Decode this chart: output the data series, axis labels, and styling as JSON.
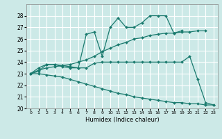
{
  "xlabel": "Humidex (Indice chaleur)",
  "xlim": [
    -0.5,
    23.5
  ],
  "ylim": [
    20,
    29
  ],
  "yticks": [
    20,
    21,
    22,
    23,
    24,
    25,
    26,
    27,
    28
  ],
  "xticks": [
    0,
    1,
    2,
    3,
    4,
    5,
    6,
    7,
    8,
    9,
    10,
    11,
    12,
    13,
    14,
    15,
    16,
    17,
    18,
    19,
    20,
    21,
    22,
    23
  ],
  "bg_color": "#cce9e7",
  "grid_color": "#ffffff",
  "line_color": "#1a7a6e",
  "lines": [
    {
      "x": [
        0,
        1,
        2,
        3,
        4,
        5,
        6,
        7,
        8,
        9,
        10,
        11,
        12,
        13,
        14,
        15,
        16,
        17,
        18,
        19
      ],
      "y": [
        23.0,
        23.5,
        23.8,
        23.8,
        23.6,
        23.5,
        23.5,
        26.4,
        26.6,
        24.5,
        27.0,
        27.8,
        27.0,
        27.0,
        27.4,
        28.0,
        28.0,
        28.0,
        26.5,
        26.7
      ]
    },
    {
      "x": [
        0,
        1,
        2,
        3,
        4,
        5,
        6,
        7,
        8,
        9,
        10,
        11,
        12,
        13,
        14,
        15,
        16,
        17,
        18,
        19,
        20,
        21,
        22
      ],
      "y": [
        23.0,
        23.3,
        23.5,
        23.6,
        23.7,
        23.8,
        24.0,
        24.2,
        24.5,
        24.9,
        25.2,
        25.5,
        25.7,
        26.0,
        26.1,
        26.3,
        26.4,
        26.5,
        26.5,
        26.6,
        26.6,
        26.7,
        26.7
      ]
    },
    {
      "x": [
        0,
        1,
        2,
        3,
        4,
        5,
        6,
        7,
        8,
        9,
        10,
        11,
        12,
        13,
        14,
        15,
        16,
        17,
        18,
        19,
        20,
        21,
        22,
        23
      ],
      "y": [
        23.0,
        23.2,
        23.8,
        23.8,
        23.7,
        23.6,
        23.5,
        23.5,
        23.9,
        24.0,
        24.0,
        24.0,
        24.0,
        24.0,
        24.0,
        24.0,
        24.0,
        24.0,
        24.0,
        24.0,
        24.5,
        22.5,
        20.5,
        20.3
      ]
    },
    {
      "x": [
        0,
        1,
        2,
        3,
        4,
        5,
        6,
        7,
        8,
        9,
        10,
        11,
        12,
        13,
        14,
        15,
        16,
        17,
        18,
        19,
        20,
        21,
        22,
        23
      ],
      "y": [
        23.0,
        23.0,
        22.9,
        22.8,
        22.7,
        22.5,
        22.3,
        22.1,
        21.9,
        21.7,
        21.5,
        21.3,
        21.2,
        21.0,
        20.9,
        20.8,
        20.7,
        20.6,
        20.5,
        20.5,
        20.4,
        20.4,
        20.3,
        20.3
      ]
    }
  ]
}
